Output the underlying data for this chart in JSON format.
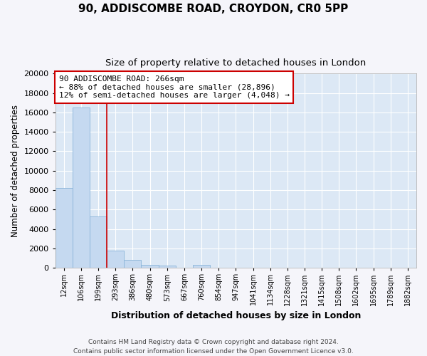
{
  "title_line1": "90, ADDISCOMBE ROAD, CROYDON, CR0 5PP",
  "title_line2": "Size of property relative to detached houses in London",
  "xlabel": "Distribution of detached houses by size in London",
  "ylabel": "Number of detached properties",
  "bar_color": "#c5d9f0",
  "bar_edge_color": "#8ab4d8",
  "background_color": "#dce8f5",
  "grid_color": "#ffffff",
  "annotation_box_edgecolor": "#cc0000",
  "red_line_color": "#cc0000",
  "categories": [
    "12sqm",
    "106sqm",
    "199sqm",
    "293sqm",
    "386sqm",
    "480sqm",
    "573sqm",
    "667sqm",
    "760sqm",
    "854sqm",
    "947sqm",
    "1041sqm",
    "1134sqm",
    "1228sqm",
    "1321sqm",
    "1415sqm",
    "1508sqm",
    "1602sqm",
    "1695sqm",
    "1789sqm",
    "1882sqm"
  ],
  "values": [
    8200,
    16500,
    5300,
    1800,
    800,
    300,
    200,
    0,
    300,
    0,
    0,
    0,
    0,
    0,
    0,
    0,
    0,
    0,
    0,
    0,
    0
  ],
  "red_line_index": 2.5,
  "annotation_line1": "90 ADDISCOMBE ROAD: 266sqm",
  "annotation_line2": "← 88% of detached houses are smaller (28,896)",
  "annotation_line3": "12% of semi-detached houses are larger (4,048) →",
  "ylim_max": 20000,
  "yticks": [
    0,
    2000,
    4000,
    6000,
    8000,
    10000,
    12000,
    14000,
    16000,
    18000,
    20000
  ],
  "footnote_line1": "Contains HM Land Registry data © Crown copyright and database right 2024.",
  "footnote_line2": "Contains public sector information licensed under the Open Government Licence v3.0.",
  "fig_bg": "#f5f5fa"
}
